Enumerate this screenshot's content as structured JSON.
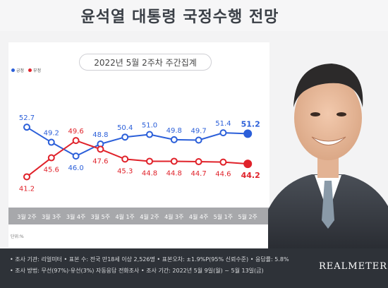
{
  "header": {
    "title": "윤석열 대통령 국정수행 전망"
  },
  "subtitle": "2022년 5월 2주차 주간집계",
  "unit_label": "단위:%",
  "footer": {
    "line1": "• 조사 기관: 리얼미터 • 표본 수: 전국 만18세 이상 2,526명 • 표본오차: ±1.9%P(95% 신뢰수준) • 응답률: 5.8%",
    "line2": "• 조사 방법: 무선(97%)·유선(3%) 자동응답 전화조사 • 조사 기간: 2022년 5월 9일(월) ~ 5월 13일(금)",
    "brand": "REALMETER"
  },
  "colors": {
    "positive": "#2b5fd9",
    "negative": "#e0222a",
    "axis_band": "#a7a8ab"
  },
  "chart_data": {
    "type": "line",
    "categories": [
      "3월 2주",
      "3월 3주",
      "3월 4주",
      "3월 5주",
      "4월 1주",
      "4월 2주",
      "4월 3주",
      "4월 4주",
      "5월 1주",
      "5월 2주"
    ],
    "series": [
      {
        "name": "긍정",
        "values": [
          52.7,
          49.2,
          46.0,
          48.8,
          50.4,
          51.0,
          49.8,
          49.7,
          51.4,
          51.2
        ],
        "labels": [
          "52.7",
          "49.2",
          "46.0",
          "48.8",
          "50.4",
          "51.0",
          "49.8",
          "49.7",
          "51.4",
          "51.2"
        ]
      },
      {
        "name": "부정",
        "values": [
          41.2,
          45.6,
          49.6,
          47.6,
          45.3,
          44.8,
          44.8,
          44.7,
          44.6,
          44.2
        ],
        "labels": [
          "41.2",
          "45.6",
          "49.6",
          "47.6",
          "45.3",
          "44.8",
          "44.8",
          "44.7",
          "44.6",
          "44.2"
        ]
      }
    ],
    "ylim": [
      38,
      56
    ],
    "legend_position": "top-left",
    "grid": false
  }
}
